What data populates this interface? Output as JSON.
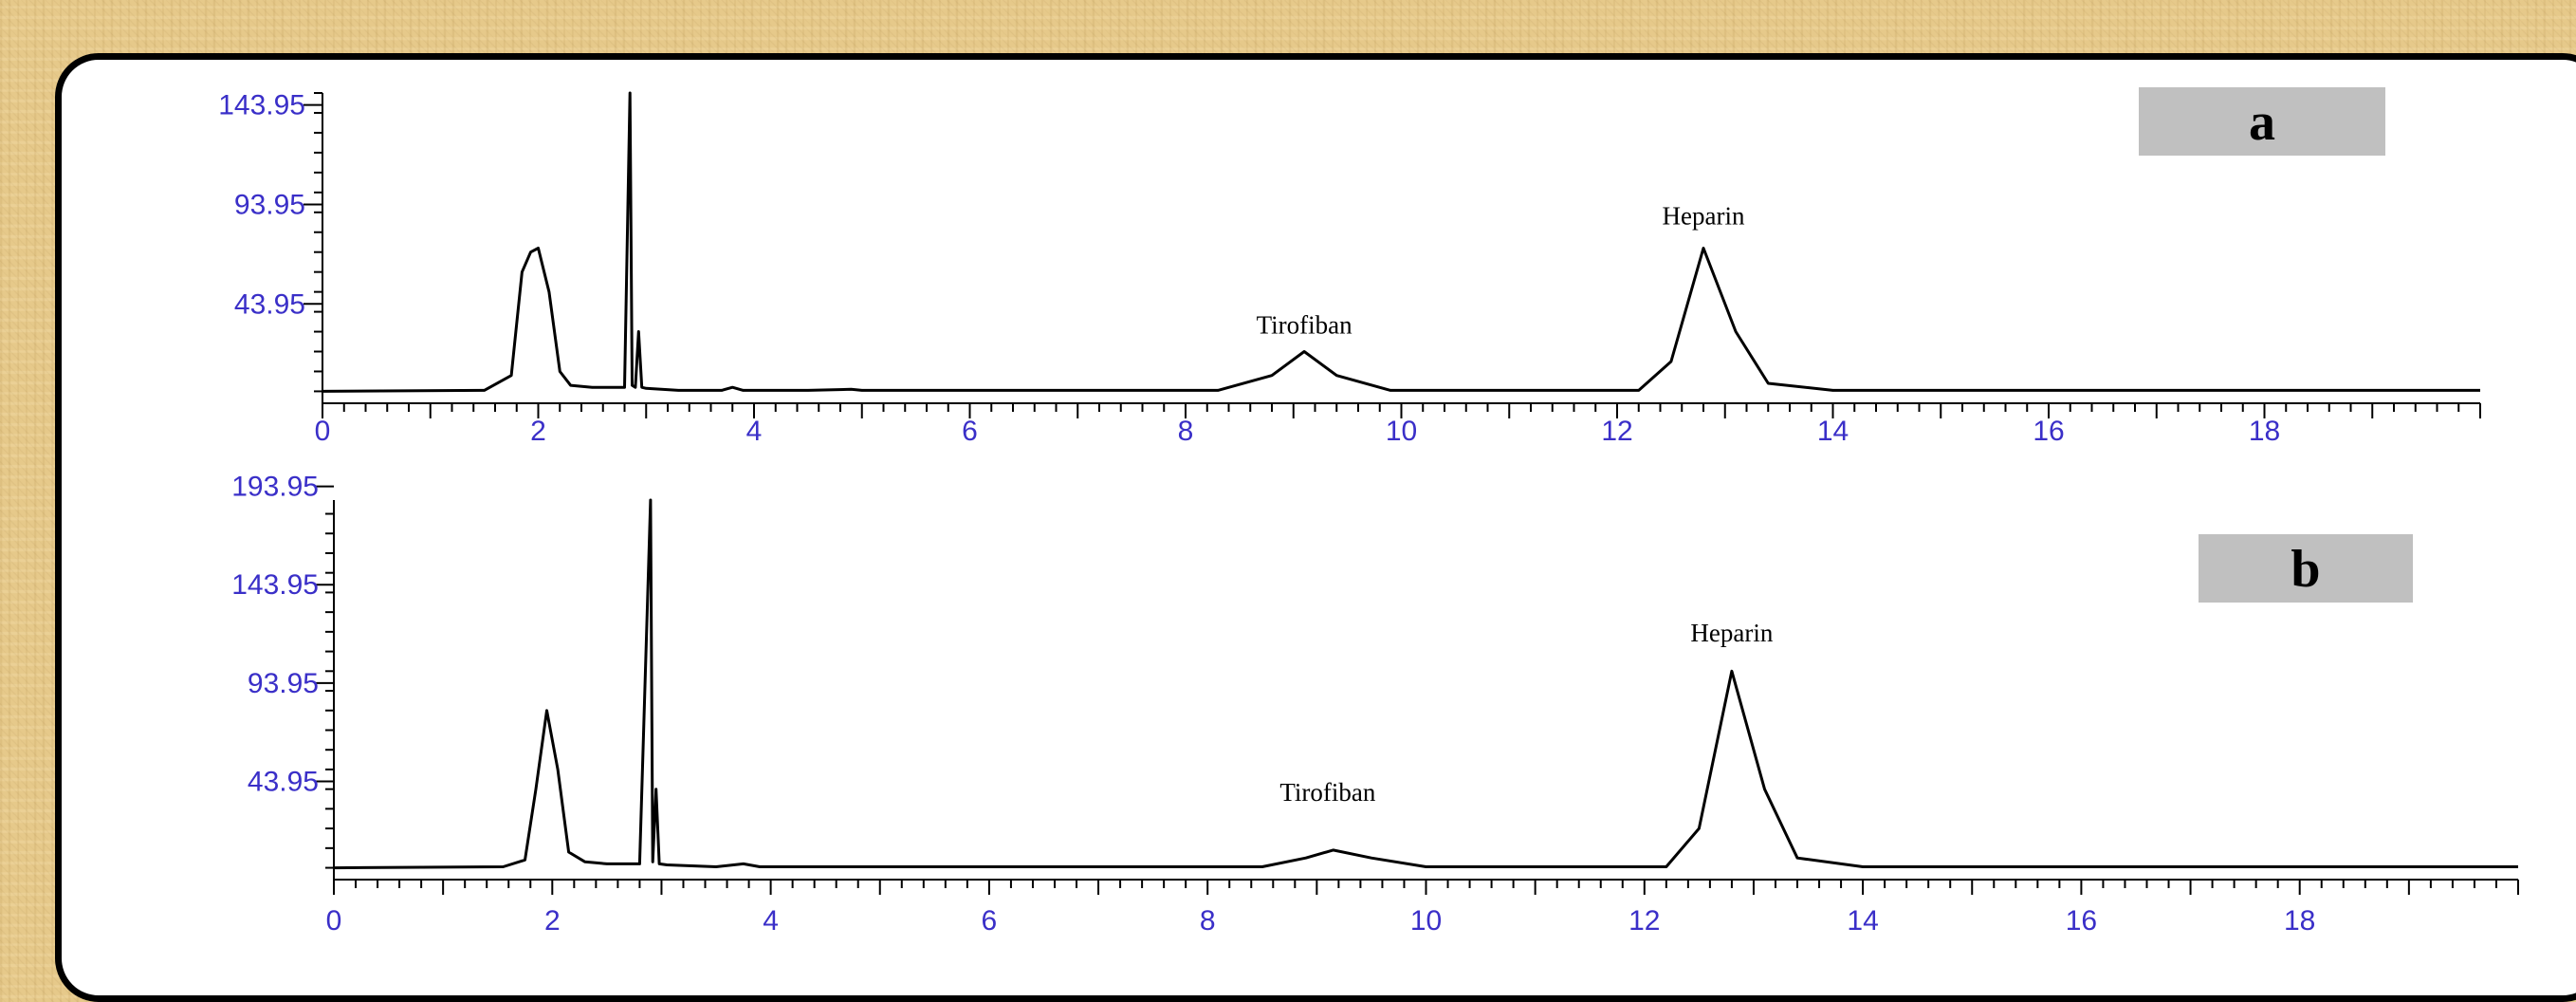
{
  "chart_data": [
    {
      "type": "line",
      "panel_label": "a",
      "xlim": [
        0,
        20
      ],
      "ylim": [
        -6,
        150
      ],
      "x_ticks": [
        "0",
        "2",
        "4",
        "6",
        "8",
        "10",
        "12",
        "14",
        "16",
        "18"
      ],
      "y_ticks": [
        "143.95",
        "93.95",
        "43.95"
      ],
      "annotations": [
        {
          "text": "Tirofiban",
          "x": 9.1,
          "y": 29
        },
        {
          "text": "Heparin",
          "x": 12.8,
          "y": 84
        }
      ],
      "x": [
        0,
        1.5,
        1.75,
        1.85,
        1.93,
        2.0,
        2.1,
        2.2,
        2.3,
        2.5,
        2.8,
        2.85,
        2.87,
        2.9,
        2.93,
        2.96,
        3.0,
        3.3,
        3.7,
        3.8,
        3.9,
        4.5,
        4.9,
        5.0,
        6.0,
        8.3,
        8.8,
        9.1,
        9.4,
        9.9,
        12.2,
        12.5,
        12.8,
        13.1,
        13.4,
        14.0,
        20
      ],
      "y": [
        0,
        0.5,
        8,
        60,
        70,
        72,
        50,
        10,
        3,
        2,
        2,
        150,
        3,
        2,
        30,
        2,
        1.5,
        0.5,
        0.5,
        2,
        0.5,
        0.5,
        1,
        0.5,
        0.5,
        0.5,
        8,
        20,
        8,
        0.5,
        0.5,
        15,
        72,
        30,
        4,
        0.5,
        0.5
      ]
    },
    {
      "type": "line",
      "panel_label": "b",
      "xlim": [
        0,
        20
      ],
      "ylim": [
        -6,
        187
      ],
      "x_ticks": [
        "0",
        "2",
        "4",
        "6",
        "8",
        "10",
        "12",
        "14",
        "16",
        "18"
      ],
      "y_ticks": [
        "193.95",
        "143.95",
        "93.95",
        "43.95"
      ],
      "annotations": [
        {
          "text": "Tirofiban",
          "x": 9.1,
          "y": 34
        },
        {
          "text": "Heparin",
          "x": 12.8,
          "y": 115
        }
      ],
      "x": [
        0,
        1.55,
        1.75,
        1.85,
        1.95,
        2.05,
        2.15,
        2.3,
        2.5,
        2.8,
        2.9,
        2.92,
        2.95,
        2.98,
        3.05,
        3.5,
        3.75,
        3.9,
        4.5,
        8.5,
        8.9,
        9.15,
        9.5,
        10.0,
        12.2,
        12.5,
        12.8,
        13.1,
        13.4,
        14.0,
        20
      ],
      "y": [
        0,
        0.5,
        4,
        40,
        80,
        50,
        8,
        3,
        2,
        2,
        187,
        3,
        40,
        2,
        1.5,
        0.5,
        2,
        0.5,
        0.5,
        0.5,
        5,
        9,
        5,
        0.5,
        0.5,
        20,
        100,
        40,
        5,
        0.5,
        0.5
      ]
    }
  ]
}
